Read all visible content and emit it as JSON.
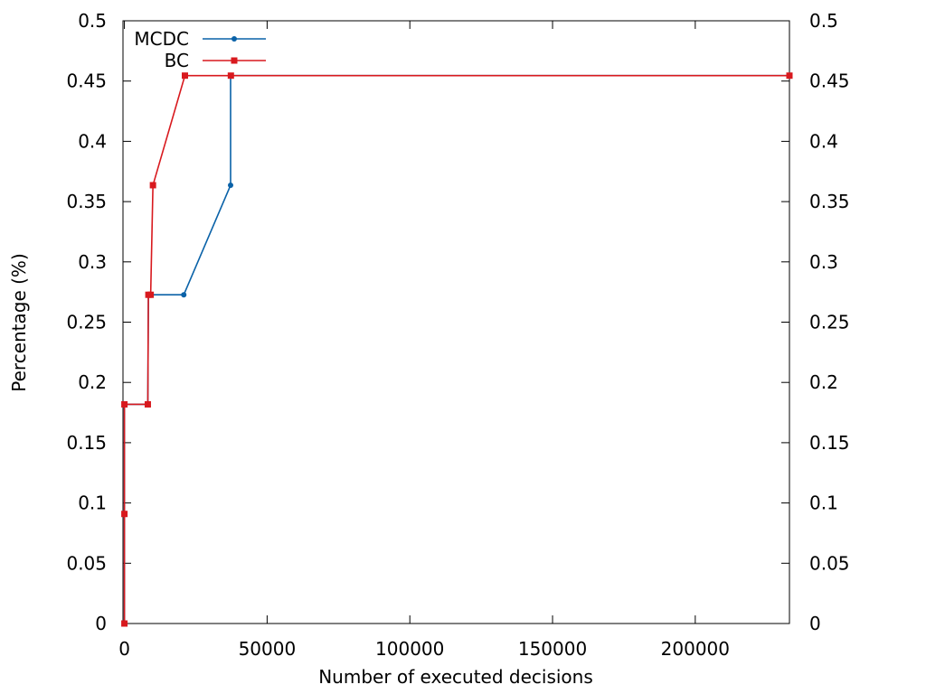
{
  "chart_data": {
    "type": "line",
    "title": "",
    "xlabel": "Number of executed decisions",
    "ylabel": "Percentage (%)",
    "xlim": [
      -500,
      233000
    ],
    "ylim": [
      0,
      0.5
    ],
    "x_ticks": [
      0,
      50000,
      100000,
      150000,
      200000
    ],
    "x_tick_labels": [
      "0",
      "50000",
      "100000",
      "150000",
      "200000"
    ],
    "y_ticks": [
      0,
      0.05,
      0.1,
      0.15,
      0.2,
      0.25,
      0.3,
      0.35,
      0.4,
      0.45,
      0.5
    ],
    "y_tick_labels": [
      "0",
      "0.05",
      "0.1",
      "0.15",
      "0.2",
      "0.25",
      "0.3",
      "0.35",
      "0.4",
      "0.45",
      "0.5"
    ],
    "right_axis_mirrors_left": true,
    "legend_position": "top-left",
    "grid": false,
    "series": [
      {
        "name": "MCDC",
        "color": "#0a62a8",
        "marker": "circle",
        "points": [
          [
            0,
            0
          ],
          [
            0,
            0.0909
          ],
          [
            0,
            0.1818
          ],
          [
            8200,
            0.1818
          ],
          [
            8400,
            0.2727
          ],
          [
            20800,
            0.2727
          ],
          [
            37200,
            0.3636
          ],
          [
            37200,
            0.4545
          ],
          [
            233000,
            0.4545
          ]
        ]
      },
      {
        "name": "BC",
        "color": "#d8191e",
        "marker": "square",
        "points": [
          [
            0,
            0
          ],
          [
            0,
            0.0909
          ],
          [
            0,
            0.1818
          ],
          [
            8200,
            0.1818
          ],
          [
            8400,
            0.2727
          ],
          [
            9200,
            0.2727
          ],
          [
            10000,
            0.3636
          ],
          [
            21200,
            0.4545
          ],
          [
            37300,
            0.4545
          ],
          [
            233000,
            0.4545
          ]
        ]
      }
    ]
  }
}
